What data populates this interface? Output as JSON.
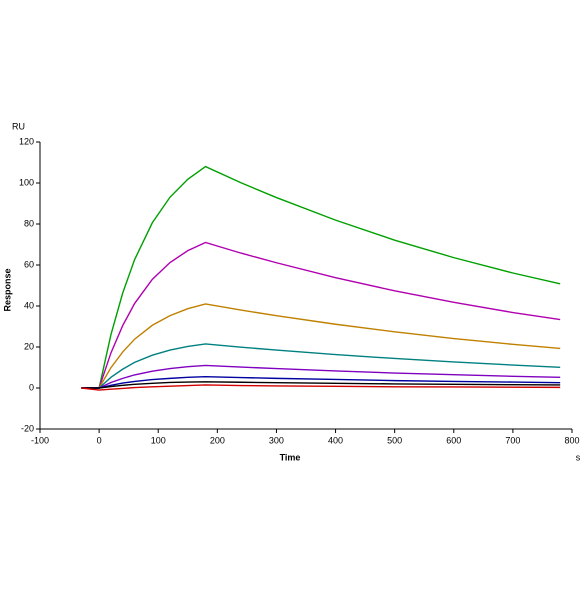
{
  "chart_data": {
    "type": "line",
    "y_unit_label": "RU",
    "ylabel": "Response",
    "xlabel": "Time",
    "x_unit_label": "s",
    "x": [
      -30,
      0,
      20,
      40,
      60,
      90,
      120,
      150,
      180,
      240,
      300,
      400,
      500,
      600,
      700,
      780
    ],
    "series": [
      {
        "color": "#00a000",
        "values": [
          0,
          0,
          26,
          46.4,
          62.6,
          80.6,
          93.1,
          101.8,
          108,
          100.1,
          92.9,
          81.9,
          72.1,
          63.6,
          56.1,
          50.8
        ]
      },
      {
        "color": "#b000b0",
        "values": [
          0,
          0,
          17.1,
          30.5,
          41.2,
          53,
          61.2,
          67,
          71,
          65.8,
          61.1,
          53.8,
          47.4,
          41.8,
          36.8,
          33.4
        ]
      },
      {
        "color": "#c08000",
        "values": [
          0,
          0,
          9.9,
          17.6,
          23.8,
          30.6,
          35.3,
          38.7,
          41,
          38,
          35.3,
          31.1,
          27.4,
          24.1,
          21.3,
          19.3
        ]
      },
      {
        "color": "#008080",
        "values": [
          0,
          0,
          5.2,
          9.2,
          12.5,
          16,
          18.5,
          20.3,
          21.5,
          19.9,
          18.5,
          16.3,
          14.4,
          12.7,
          11.2,
          10.1
        ]
      },
      {
        "color": "#8000c0",
        "values": [
          0,
          0,
          2.7,
          4.7,
          6.4,
          8.2,
          9.5,
          10.4,
          11,
          10.2,
          9.5,
          8.3,
          7.3,
          6.5,
          5.7,
          5.2
        ]
      },
      {
        "color": "#0000a0",
        "values": [
          0,
          0,
          1.3,
          2.4,
          3.2,
          4.1,
          4.7,
          5.2,
          5.5,
          5.1,
          4.7,
          4.2,
          3.6,
          3.2,
          2.9,
          2.6
        ]
      },
      {
        "color": "#000000",
        "values": [
          0,
          0,
          0.7,
          1.3,
          1.8,
          2.3,
          2.7,
          2.9,
          3,
          2.8,
          2.6,
          2.3,
          2,
          1.8,
          1.6,
          1.5
        ]
      },
      {
        "color": "#d00000",
        "values": [
          0,
          -1,
          -0.6,
          -0.2,
          0.2,
          0.6,
          0.9,
          1.2,
          1.5,
          1.2,
          1,
          0.8,
          0.6,
          0.5,
          0.4,
          0.3
        ]
      }
    ],
    "xlim": [
      -100,
      800
    ],
    "xticks": [
      -100,
      0,
      100,
      200,
      300,
      400,
      500,
      600,
      700,
      800
    ],
    "ylim": [
      -20,
      120
    ],
    "yticks": [
      -20,
      0,
      20,
      40,
      60,
      80,
      100,
      120
    ]
  }
}
